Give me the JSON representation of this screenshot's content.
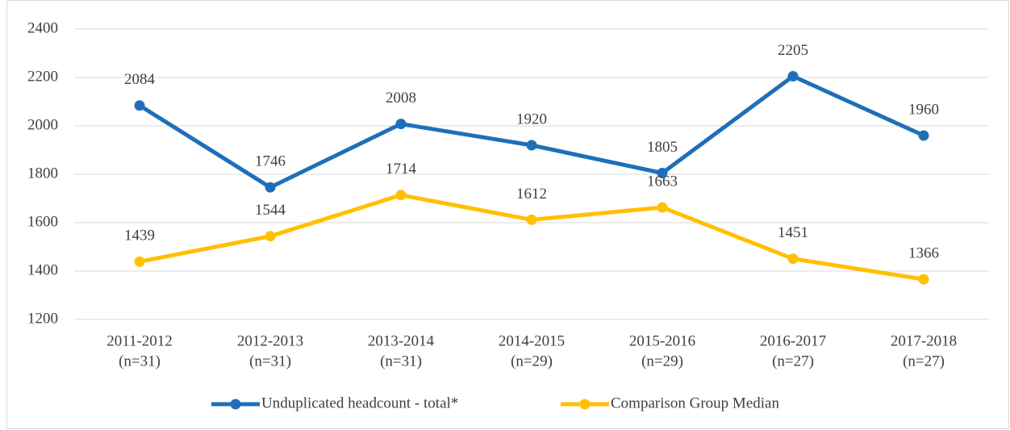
{
  "chart_data": {
    "type": "line",
    "categories": [
      [
        "2011-2012",
        "(n=31)"
      ],
      [
        "2012-2013",
        "(n=31)"
      ],
      [
        "2013-2014",
        "(n=31)"
      ],
      [
        "2014-2015",
        "(n=29)"
      ],
      [
        "2015-2016",
        "(n=29)"
      ],
      [
        "2016-2017",
        "(n=27)"
      ],
      [
        "2017-2018",
        "(n=27)"
      ]
    ],
    "series": [
      {
        "name": "Unduplicated headcount - total*",
        "color": "#1f6fb8",
        "values": [
          2084,
          1746,
          2008,
          1920,
          1805,
          2205,
          1960
        ]
      },
      {
        "name": "Comparison Group Median",
        "color": "#ffc000",
        "values": [
          1439,
          1544,
          1714,
          1612,
          1663,
          1451,
          1366
        ]
      }
    ],
    "ylim": [
      1200,
      2400
    ],
    "yticks": [
      1200,
      1400,
      1600,
      1800,
      2000,
      2200,
      2400
    ],
    "grid": true,
    "legend": "bottom"
  }
}
